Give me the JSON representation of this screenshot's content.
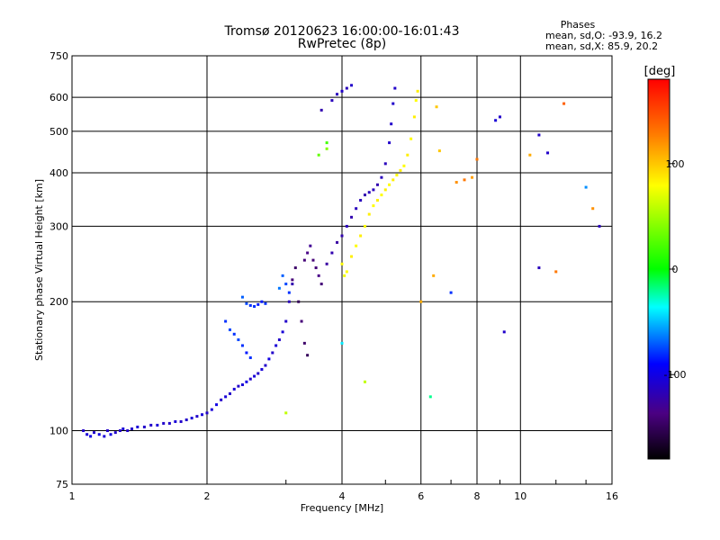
{
  "chart_data": {
    "type": "scatter",
    "title": "Tromsø 20120623 16:00:00-16:01:43",
    "subtitle": "RwPretec (8p)",
    "phase_box": {
      "heading": "Phases",
      "line_o": "mean, sd,O: -93.9, 16.2",
      "line_x": "mean, sd,X:  85.9, 20.2"
    },
    "xlabel": "Frequency [MHz]",
    "ylabel": "Stationary phase Virtual Height [km]",
    "x_scale": "log",
    "y_scale": "log",
    "xlim": [
      1,
      16
    ],
    "ylim": [
      75,
      750
    ],
    "x_ticks": [
      1,
      2,
      4,
      6,
      8,
      10,
      16
    ],
    "y_ticks": [
      75,
      100,
      200,
      300,
      400,
      500,
      600,
      750
    ],
    "grid": true,
    "colorbar": {
      "label": "[deg]",
      "range": [
        -180,
        180
      ],
      "ticks": [
        100,
        0,
        -100
      ]
    },
    "series": [
      {
        "points": [
          [
            1.06,
            100,
            -110
          ],
          [
            1.08,
            98,
            -105
          ],
          [
            1.1,
            97,
            -100
          ],
          [
            1.12,
            99,
            -110
          ],
          [
            1.15,
            98,
            -100
          ],
          [
            1.18,
            97,
            -105
          ],
          [
            1.2,
            100,
            -110
          ],
          [
            1.22,
            98,
            -100
          ],
          [
            1.25,
            99,
            -110
          ],
          [
            1.28,
            100,
            -110
          ],
          [
            1.3,
            101,
            -105
          ],
          [
            1.33,
            100,
            -110
          ],
          [
            1.36,
            101,
            -110
          ],
          [
            1.4,
            102,
            -105
          ],
          [
            1.45,
            102,
            -110
          ],
          [
            1.5,
            103,
            -110
          ],
          [
            1.55,
            103,
            -105
          ],
          [
            1.6,
            104,
            -110
          ],
          [
            1.65,
            104,
            -110
          ],
          [
            1.7,
            105,
            -105
          ],
          [
            1.75,
            105,
            -110
          ],
          [
            1.8,
            106,
            -110
          ],
          [
            1.85,
            107,
            -105
          ],
          [
            1.9,
            108,
            -110
          ],
          [
            1.95,
            109,
            -105
          ],
          [
            2.0,
            110,
            -110
          ],
          [
            2.05,
            112,
            -105
          ],
          [
            2.1,
            115,
            -100
          ],
          [
            2.15,
            118,
            -110
          ],
          [
            2.2,
            120,
            -105
          ],
          [
            2.25,
            122,
            -110
          ],
          [
            2.3,
            125,
            -105
          ],
          [
            2.35,
            127,
            -110
          ],
          [
            2.4,
            128,
            -105
          ],
          [
            2.45,
            130,
            -100
          ],
          [
            2.5,
            132,
            -110
          ],
          [
            2.55,
            134,
            -105
          ],
          [
            2.6,
            136,
            -110
          ],
          [
            2.65,
            139,
            -105
          ],
          [
            2.7,
            142,
            -110
          ],
          [
            2.75,
            147,
            -100
          ],
          [
            2.8,
            152,
            -110
          ],
          [
            2.85,
            158,
            -105
          ],
          [
            2.9,
            163,
            -110
          ],
          [
            2.95,
            170,
            -105
          ],
          [
            3.0,
            180,
            -110
          ],
          [
            3.05,
            200,
            -115
          ],
          [
            3.1,
            220,
            -120
          ],
          [
            2.2,
            180,
            -80
          ],
          [
            2.25,
            172,
            -75
          ],
          [
            2.3,
            168,
            -80
          ],
          [
            2.35,
            163,
            -75
          ],
          [
            2.4,
            158,
            -80
          ],
          [
            2.45,
            152,
            -85
          ],
          [
            2.5,
            148,
            -80
          ],
          [
            2.4,
            205,
            -70
          ],
          [
            2.45,
            198,
            -75
          ],
          [
            2.5,
            196,
            -80
          ],
          [
            2.55,
            195,
            -80
          ],
          [
            2.6,
            197,
            -85
          ],
          [
            2.65,
            200,
            -85
          ],
          [
            2.7,
            198,
            -80
          ],
          [
            2.9,
            215,
            -65
          ],
          [
            2.95,
            230,
            -70
          ],
          [
            3.0,
            220,
            -75
          ],
          [
            3.05,
            210,
            -80
          ],
          [
            3.1,
            225,
            -140
          ],
          [
            3.15,
            240,
            -145
          ],
          [
            3.2,
            200,
            -150
          ],
          [
            3.25,
            180,
            -140
          ],
          [
            3.3,
            160,
            -145
          ],
          [
            3.35,
            150,
            -150
          ],
          [
            3.3,
            250,
            -140
          ],
          [
            3.35,
            260,
            -135
          ],
          [
            3.4,
            270,
            -130
          ],
          [
            3.45,
            250,
            -140
          ],
          [
            3.5,
            240,
            -140
          ],
          [
            3.55,
            230,
            -135
          ],
          [
            3.6,
            220,
            -140
          ],
          [
            3.7,
            245,
            -125
          ],
          [
            3.8,
            260,
            -120
          ],
          [
            3.9,
            275,
            -125
          ],
          [
            4.0,
            285,
            -120
          ],
          [
            4.1,
            300,
            -115
          ],
          [
            4.2,
            315,
            -120
          ],
          [
            4.3,
            330,
            -115
          ],
          [
            4.4,
            345,
            -115
          ],
          [
            4.5,
            355,
            -120
          ],
          [
            4.6,
            360,
            -115
          ],
          [
            4.7,
            365,
            -115
          ],
          [
            4.8,
            375,
            -120
          ],
          [
            4.9,
            390,
            -115
          ],
          [
            5.0,
            420,
            -115
          ],
          [
            5.1,
            470,
            -110
          ],
          [
            5.15,
            520,
            -110
          ],
          [
            5.2,
            580,
            -110
          ],
          [
            5.25,
            630,
            -110
          ],
          [
            3.8,
            590,
            -115
          ],
          [
            3.9,
            610,
            -115
          ],
          [
            4.0,
            620,
            -110
          ],
          [
            4.1,
            630,
            -115
          ],
          [
            4.2,
            640,
            -110
          ],
          [
            3.6,
            560,
            -120
          ],
          [
            4.0,
            245,
            80
          ],
          [
            4.05,
            230,
            75
          ],
          [
            4.1,
            235,
            80
          ],
          [
            4.2,
            255,
            85
          ],
          [
            4.3,
            270,
            80
          ],
          [
            4.4,
            285,
            85
          ],
          [
            4.5,
            300,
            80
          ],
          [
            4.6,
            320,
            85
          ],
          [
            4.7,
            335,
            80
          ],
          [
            4.8,
            345,
            85
          ],
          [
            4.9,
            355,
            80
          ],
          [
            5.0,
            365,
            85
          ],
          [
            5.1,
            375,
            80
          ],
          [
            5.2,
            385,
            85
          ],
          [
            5.3,
            395,
            80
          ],
          [
            5.4,
            405,
            85
          ],
          [
            5.5,
            415,
            80
          ],
          [
            5.6,
            440,
            85
          ],
          [
            5.7,
            480,
            80
          ],
          [
            5.8,
            540,
            85
          ],
          [
            5.85,
            590,
            80
          ],
          [
            5.9,
            620,
            85
          ],
          [
            3.7,
            470,
            20
          ],
          [
            3.55,
            440,
            30
          ],
          [
            3.7,
            455,
            40
          ],
          [
            7.2,
            380,
            120
          ],
          [
            7.5,
            385,
            130
          ],
          [
            7.8,
            390,
            115
          ],
          [
            8.0,
            430,
            130
          ],
          [
            10.5,
            440,
            110
          ],
          [
            12.5,
            580,
            140
          ],
          [
            14.5,
            330,
            120
          ],
          [
            6.0,
            200,
            110
          ],
          [
            6.5,
            570,
            100
          ],
          [
            6.4,
            230,
            110
          ],
          [
            9.0,
            540,
            -110
          ],
          [
            11,
            490,
            -110
          ],
          [
            11.5,
            445,
            -110
          ],
          [
            15,
            300,
            -115
          ],
          [
            11,
            240,
            -115
          ],
          [
            12,
            235,
            130
          ],
          [
            9.2,
            170,
            -110
          ],
          [
            8.8,
            530,
            -105
          ],
          [
            14,
            370,
            -60
          ],
          [
            6.6,
            450,
            100
          ],
          [
            6.3,
            120,
            -20
          ],
          [
            7.0,
            210,
            -80
          ],
          [
            4.5,
            130,
            60
          ],
          [
            4.0,
            160,
            -40
          ],
          [
            3.0,
            110,
            60
          ]
        ]
      }
    ]
  }
}
